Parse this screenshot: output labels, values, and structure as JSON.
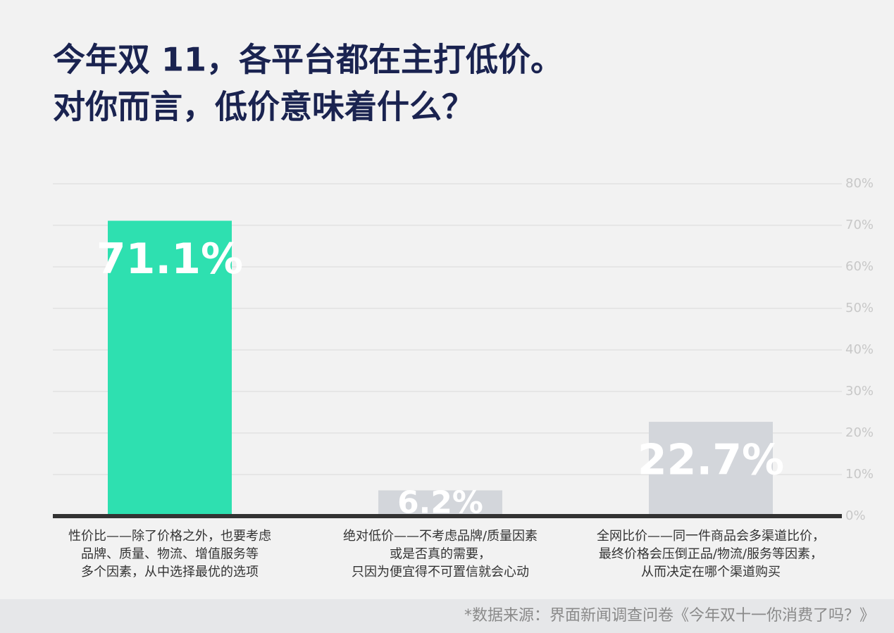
{
  "chart_data": {
    "type": "bar",
    "title": [
      "今年双 11，各平台都在主打低价。",
      "对你而言，低价意味着什么？"
    ],
    "categories": [
      [
        "性价比——除了价格之外，也要考虑",
        "品牌、质量、物流、增值服务等",
        "多个因素，从中选择最优的选项"
      ],
      [
        "绝对低价——不考虑品牌/质量因素",
        "或是否真的需要，",
        "只因为便宜得不可置信就会心动"
      ],
      [
        "全网比价——同一件商品会多渠道比价，",
        "最终价格会压倒正品/物流/服务等因素，",
        "从而决定在哪个渠道购买"
      ]
    ],
    "values": [
      71.1,
      6.2,
      22.7
    ],
    "value_labels": [
      "71.1%",
      "6.2%",
      "22.7%"
    ],
    "colors": [
      "#2ee0b0",
      "#d3d6db",
      "#d3d6db"
    ],
    "ylim": [
      0,
      80
    ],
    "yticks": [
      {
        "value": 0,
        "label": "0%"
      },
      {
        "value": 10,
        "label": "10%"
      },
      {
        "value": 20,
        "label": "20%"
      },
      {
        "value": 30,
        "label": "30%"
      },
      {
        "value": 40,
        "label": "40%"
      },
      {
        "value": 50,
        "label": "50%"
      },
      {
        "value": 60,
        "label": "60%"
      },
      {
        "value": 70,
        "label": "70%"
      },
      {
        "value": 80,
        "label": "80%"
      }
    ],
    "grid": true,
    "source": "*数据来源：界面新闻调查问卷《今年双十一你消费了吗？》"
  }
}
